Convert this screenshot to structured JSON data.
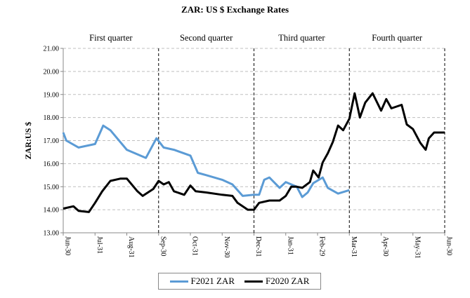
{
  "chart_data": {
    "type": "line",
    "title": "ZAR: US $ Exchange Rates",
    "ylabel": "ZAR:US $",
    "xlabel": "",
    "ylim": [
      13,
      21
    ],
    "yticks": [
      "13.00",
      "14.00",
      "15.00",
      "16.00",
      "17.00",
      "18.00",
      "19.00",
      "20.00",
      "21.00"
    ],
    "xticks": [
      "Jun-30",
      "Jul-31",
      "Aug-31",
      "Sep-30",
      "Oct-31",
      "Nov-30",
      "Dec-31",
      "Jan-31",
      "Feb-29",
      "Mar-31",
      "Apr-30",
      "May-31",
      "Jun-30"
    ],
    "grid": "horizontal dashed",
    "legend": "bottom",
    "annotations": [
      "First quarter",
      "Second quarter",
      "Third quarter",
      "Fourth quarter"
    ],
    "series": [
      {
        "name": "F2021 ZAR",
        "color": "#5b9bd5",
        "x": [
          "Jun-30",
          "Jul-3",
          "Jul-15",
          "Jul-31",
          "Aug-8",
          "Aug-15",
          "Aug-31",
          "Sep-18",
          "Sep-28",
          "Oct-5",
          "Oct-15",
          "Oct-31",
          "Nov-7",
          "Nov-15",
          "Nov-30",
          "Dec-10",
          "Dec-20",
          "Dec-31",
          "Jan-5",
          "Jan-10",
          "Jan-15",
          "Jan-25",
          "Jan-31",
          "Feb-10",
          "Feb-15",
          "Feb-20",
          "Feb-25",
          "Mar-5",
          "Mar-10",
          "Mar-20",
          "Mar-31"
        ],
        "values": [
          17.35,
          17.0,
          16.7,
          16.85,
          17.65,
          17.45,
          16.6,
          16.25,
          17.1,
          16.7,
          16.6,
          16.35,
          15.6,
          15.5,
          15.3,
          15.1,
          14.6,
          14.65,
          14.65,
          15.3,
          15.4,
          14.95,
          15.2,
          15.0,
          14.55,
          14.75,
          15.15,
          15.4,
          14.95,
          14.7,
          14.85
        ]
      },
      {
        "name": "F2020 ZAR",
        "color": "#000000",
        "x": [
          "Jun-30",
          "Jul-10",
          "Jul-15",
          "Jul-25",
          "Jul-31",
          "Aug-7",
          "Aug-15",
          "Aug-25",
          "Aug-31",
          "Sep-10",
          "Sep-15",
          "Sep-25",
          "Sep-30",
          "Oct-5",
          "Oct-10",
          "Oct-15",
          "Oct-25",
          "Oct-31",
          "Nov-5",
          "Nov-15",
          "Nov-30",
          "Dec-10",
          "Dec-15",
          "Dec-25",
          "Dec-31",
          "Jan-5",
          "Jan-15",
          "Jan-25",
          "Jan-31",
          "Feb-5",
          "Feb-10",
          "Feb-15",
          "Feb-22",
          "Feb-25",
          "Mar-1",
          "Mar-5",
          "Mar-10",
          "Mar-15",
          "Mar-20",
          "Mar-25",
          "Mar-31",
          "Apr-5",
          "Apr-10",
          "Apr-15",
          "Apr-22",
          "Apr-30",
          "May-5",
          "May-10",
          "May-20",
          "May-25",
          "May-31",
          "Jun-7",
          "Jun-12",
          "Jun-15",
          "Jun-20",
          "Jun-30"
        ],
        "values": [
          14.05,
          14.15,
          13.95,
          13.9,
          14.3,
          14.8,
          15.25,
          15.35,
          15.35,
          14.8,
          14.6,
          14.9,
          15.25,
          15.1,
          15.2,
          14.8,
          14.65,
          15.05,
          14.8,
          14.75,
          14.65,
          14.6,
          14.3,
          14.0,
          14.0,
          14.3,
          14.4,
          14.4,
          14.6,
          15.0,
          15.0,
          14.95,
          15.2,
          15.7,
          15.4,
          16.05,
          16.45,
          16.95,
          17.65,
          17.45,
          17.95,
          19.05,
          18.0,
          18.65,
          19.05,
          18.3,
          18.8,
          18.4,
          18.55,
          17.7,
          17.5,
          16.9,
          16.6,
          17.1,
          17.35,
          17.35
        ]
      }
    ]
  }
}
